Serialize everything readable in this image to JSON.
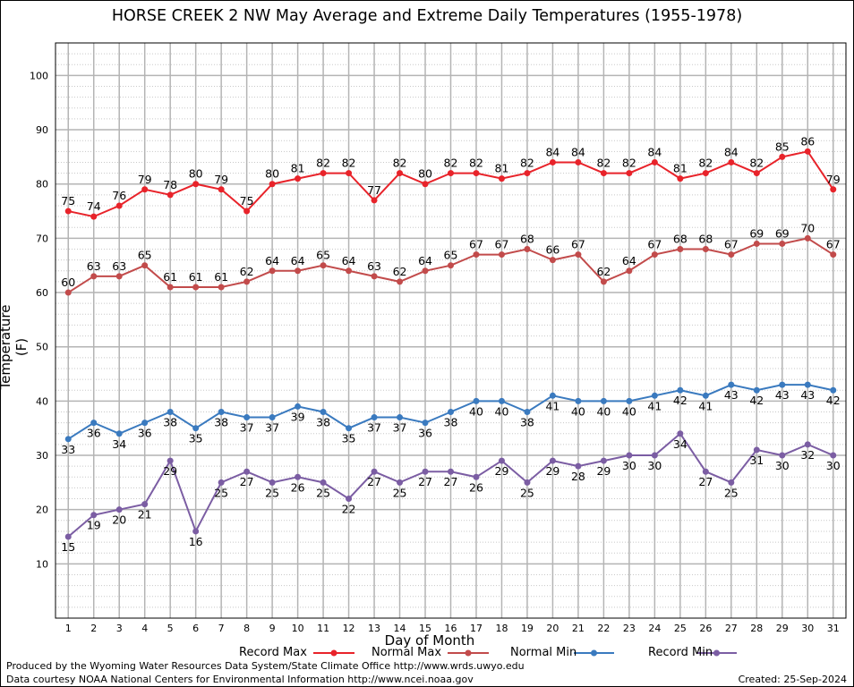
{
  "title": "HORSE CREEK 2 NW May Average and Extreme Daily Temperatures (1955-1978)",
  "footer": {
    "credit_line1": "Produced by the Wyoming Water Resources Data System/State Climate Office http://www.wrds.uwyo.edu",
    "credit_line2": "Data courtesy NOAA National Centers for Environmental Information http://www.ncei.noaa.gov",
    "created": "Created:  25-Sep-2024"
  },
  "chart_data": {
    "type": "line",
    "title": "HORSE CREEK 2 NW May Average and Extreme Daily Temperatures (1955-1978)",
    "xlabel": "Day of Month",
    "ylabel": "Temperature (F)",
    "x": [
      1,
      2,
      3,
      4,
      5,
      6,
      7,
      8,
      9,
      10,
      11,
      12,
      13,
      14,
      15,
      16,
      17,
      18,
      19,
      20,
      21,
      22,
      23,
      24,
      25,
      26,
      27,
      28,
      29,
      30,
      31
    ],
    "xlim": [
      0.5,
      31.5
    ],
    "ylim": [
      0,
      106
    ],
    "yticks": [
      10,
      20,
      30,
      40,
      50,
      60,
      70,
      80,
      90,
      100
    ],
    "grid": true,
    "legend_position": "bottom",
    "series": [
      {
        "name": "Record Max",
        "color": "#e8232a",
        "label_pos": "above",
        "values": [
          75,
          74,
          76,
          79,
          78,
          80,
          79,
          75,
          80,
          81,
          82,
          82,
          77,
          82,
          80,
          82,
          82,
          81,
          82,
          84,
          84,
          82,
          82,
          84,
          81,
          82,
          84,
          82,
          85,
          86,
          79
        ]
      },
      {
        "name": "Normal Max",
        "color": "#c24b4b",
        "label_pos": "above",
        "values": [
          60,
          63,
          63,
          65,
          61,
          61,
          61,
          62,
          64,
          64,
          65,
          64,
          63,
          62,
          64,
          65,
          67,
          67,
          68,
          66,
          67,
          62,
          64,
          67,
          68,
          68,
          67,
          69,
          69,
          70,
          67
        ]
      },
      {
        "name": "Normal Min",
        "color": "#3a7abf",
        "label_pos": "below",
        "values": [
          33,
          36,
          34,
          36,
          38,
          35,
          38,
          37,
          37,
          39,
          38,
          35,
          37,
          37,
          36,
          38,
          40,
          40,
          38,
          41,
          40,
          40,
          40,
          41,
          42,
          41,
          43,
          42,
          43,
          43,
          42
        ]
      },
      {
        "name": "Record Min",
        "color": "#7b5da3",
        "label_pos": "below",
        "values": [
          15,
          19,
          20,
          21,
          29,
          16,
          25,
          27,
          25,
          26,
          25,
          22,
          27,
          25,
          27,
          27,
          26,
          29,
          25,
          29,
          28,
          29,
          30,
          30,
          34,
          27,
          25,
          31,
          30,
          32,
          30
        ]
      }
    ]
  }
}
